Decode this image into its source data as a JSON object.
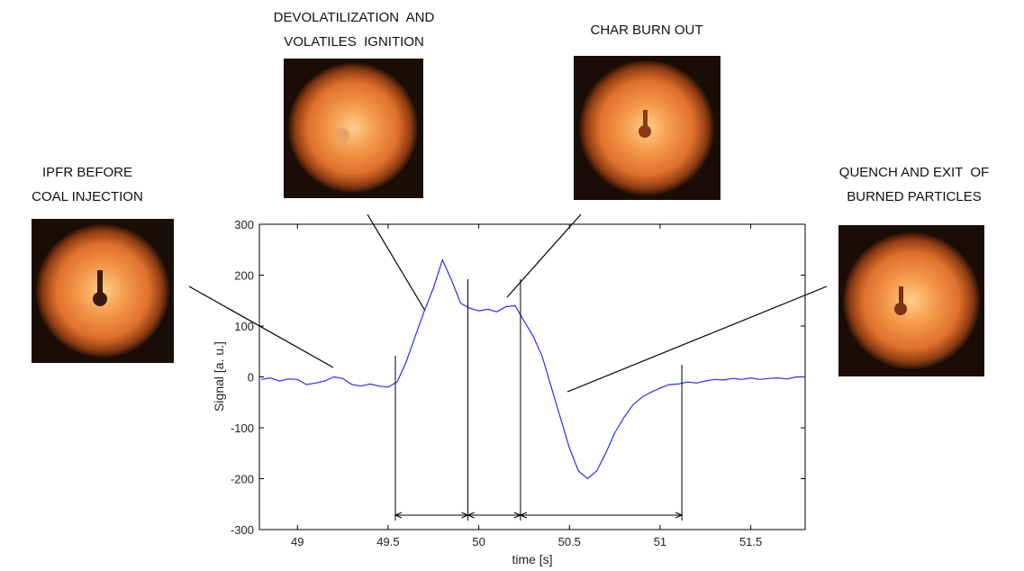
{
  "chart_data": {
    "type": "line",
    "x": [
      48.8,
      48.85,
      48.9,
      48.95,
      49.0,
      49.05,
      49.1,
      49.15,
      49.2,
      49.25,
      49.3,
      49.35,
      49.4,
      49.45,
      49.5,
      49.55,
      49.6,
      49.65,
      49.7,
      49.75,
      49.8,
      49.85,
      49.9,
      49.95,
      50.0,
      50.05,
      50.1,
      50.15,
      50.2,
      50.25,
      50.3,
      50.35,
      50.4,
      50.45,
      50.5,
      50.55,
      50.6,
      50.65,
      50.7,
      50.75,
      50.8,
      50.85,
      50.9,
      50.95,
      51.0,
      51.05,
      51.1,
      51.15,
      51.2,
      51.25,
      51.3,
      51.35,
      51.4,
      51.45,
      51.5,
      51.55,
      51.6,
      51.65,
      51.7,
      51.75,
      51.8
    ],
    "values": [
      -5,
      -2,
      -8,
      -4,
      -5,
      -15,
      -12,
      -8,
      0,
      -3,
      -15,
      -18,
      -14,
      -18,
      -20,
      -10,
      30,
      80,
      130,
      175,
      230,
      190,
      145,
      135,
      130,
      133,
      128,
      138,
      140,
      110,
      80,
      40,
      -20,
      -80,
      -140,
      -185,
      -200,
      -185,
      -150,
      -110,
      -80,
      -55,
      -40,
      -30,
      -22,
      -15,
      -14,
      -10,
      -12,
      -8,
      -5,
      -6,
      -3,
      -5,
      -2,
      -5,
      -3,
      -2,
      -4,
      0,
      0
    ],
    "color": "#2b2bff",
    "xlim": [
      48.79,
      51.8
    ],
    "ylim": [
      -300,
      300
    ],
    "xticks": [
      49,
      49.5,
      50,
      50.5,
      51,
      51.5
    ],
    "yticks": [
      -300,
      -200,
      -100,
      0,
      100,
      200,
      300
    ],
    "xlabel": "time [s]",
    "ylabel": "Signal [a. u.]",
    "phase_boundaries": [
      49.54,
      49.94,
      50.23,
      51.12
    ],
    "annotations": [
      {
        "lines": [
          "IPFR BEFORE",
          "COAL INJECTION"
        ]
      },
      {
        "lines": [
          "DEVOLATILIZATION  AND",
          "VOLATILES  IGNITION"
        ]
      },
      {
        "lines": [
          "CHAR BURN OUT"
        ]
      },
      {
        "lines": [
          "QUENCH AND EXIT  OF",
          "BURNED PARTICLES"
        ]
      }
    ]
  }
}
